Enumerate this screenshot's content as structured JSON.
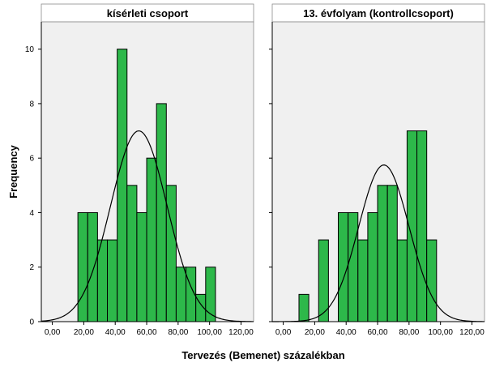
{
  "chart_data": {
    "type": "bar",
    "xlabel": "Tervezés (Bemenet) százalékban",
    "ylabel": "Frequency",
    "ylim": [
      0,
      11
    ],
    "y_ticks": [
      "0",
      "2",
      "4",
      "6",
      "8",
      "10"
    ],
    "y_tick_values": [
      0,
      2,
      4,
      6,
      8,
      10
    ],
    "x_ticks": [
      "0,00",
      "20,00",
      "40,00",
      "60,00",
      "80,00",
      "100,00",
      "120,00"
    ],
    "x_tick_values": [
      0,
      20,
      40,
      60,
      80,
      100,
      120
    ],
    "xlim": [
      -7,
      128
    ],
    "bin_width": 6.25,
    "bar_color": "#2db84a",
    "plot_background": "#f0f0f0",
    "grid": false,
    "panels": [
      {
        "title": "kísérleti csoport",
        "bins": [
          {
            "x_start": 16.25,
            "count": 4
          },
          {
            "x_start": 22.5,
            "count": 4
          },
          {
            "x_start": 28.75,
            "count": 3
          },
          {
            "x_start": 35.0,
            "count": 3
          },
          {
            "x_start": 41.25,
            "count": 10
          },
          {
            "x_start": 47.5,
            "count": 5
          },
          {
            "x_start": 53.75,
            "count": 4
          },
          {
            "x_start": 60.0,
            "count": 6
          },
          {
            "x_start": 66.25,
            "count": 8
          },
          {
            "x_start": 72.5,
            "count": 5
          },
          {
            "x_start": 78.75,
            "count": 2
          },
          {
            "x_start": 85.0,
            "count": 2
          },
          {
            "x_start": 91.25,
            "count": 1
          },
          {
            "x_start": 97.5,
            "count": 2
          }
        ],
        "normal_curve": {
          "mean": 55.0,
          "peak": 7.0,
          "sd": 18.0
        }
      },
      {
        "title": "13. évfolyam (kontrollcsoport)",
        "bins": [
          {
            "x_start": 10.0,
            "count": 1
          },
          {
            "x_start": 22.5,
            "count": 3
          },
          {
            "x_start": 35.0,
            "count": 4
          },
          {
            "x_start": 41.25,
            "count": 4
          },
          {
            "x_start": 47.5,
            "count": 3
          },
          {
            "x_start": 53.75,
            "count": 4
          },
          {
            "x_start": 60.0,
            "count": 5
          },
          {
            "x_start": 66.25,
            "count": 5
          },
          {
            "x_start": 72.5,
            "count": 3
          },
          {
            "x_start": 78.75,
            "count": 7
          },
          {
            "x_start": 85.0,
            "count": 7
          },
          {
            "x_start": 91.25,
            "count": 3
          }
        ],
        "normal_curve": {
          "mean": 64.0,
          "peak": 5.75,
          "sd": 16.0
        }
      }
    ]
  }
}
